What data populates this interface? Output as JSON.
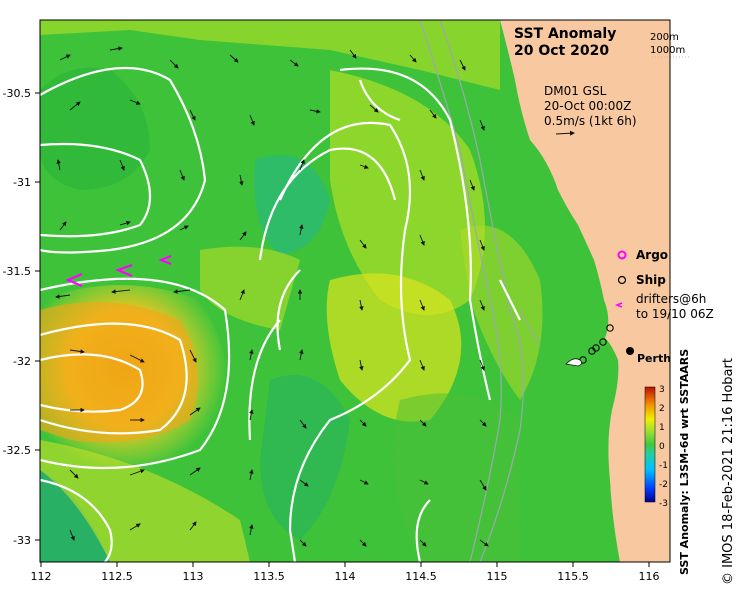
{
  "map": {
    "title": "SST Anomaly",
    "date": "20 Oct 2020",
    "depth_legend": [
      "200m",
      "1000m"
    ],
    "current_info": [
      "DM01 GSL",
      "20-Oct 00:00Z",
      "0.5m/s (1kt 6h)"
    ],
    "legend": {
      "argo": "Argo",
      "ship": "Ship",
      "drifters_line1": "drifters@6h",
      "drifters_line2": "to 19/10 06Z"
    },
    "place": "Perth",
    "x_ticks": [
      "112",
      "112.5",
      "113",
      "113.5",
      "114",
      "114.5",
      "115",
      "115.5",
      "116"
    ],
    "y_ticks": [
      "-30.5",
      "-31",
      "-31.5",
      "-32",
      "-32.5",
      "-33"
    ],
    "colorbar": {
      "label": "SST Anomaly: L3SM-6d wrt SSTAARS",
      "ticks": [
        "3",
        "2",
        "1",
        "0",
        "-1",
        "-2",
        "-3"
      ]
    },
    "credit": "© IMOS 18-Feb-2021 21:16 Hobart",
    "colors": {
      "land": "#f8c8a0",
      "ocean_green": "#38c038",
      "warm": "#f0a020",
      "argo": "#ff00ff",
      "drifter": "#ff00ff"
    }
  }
}
